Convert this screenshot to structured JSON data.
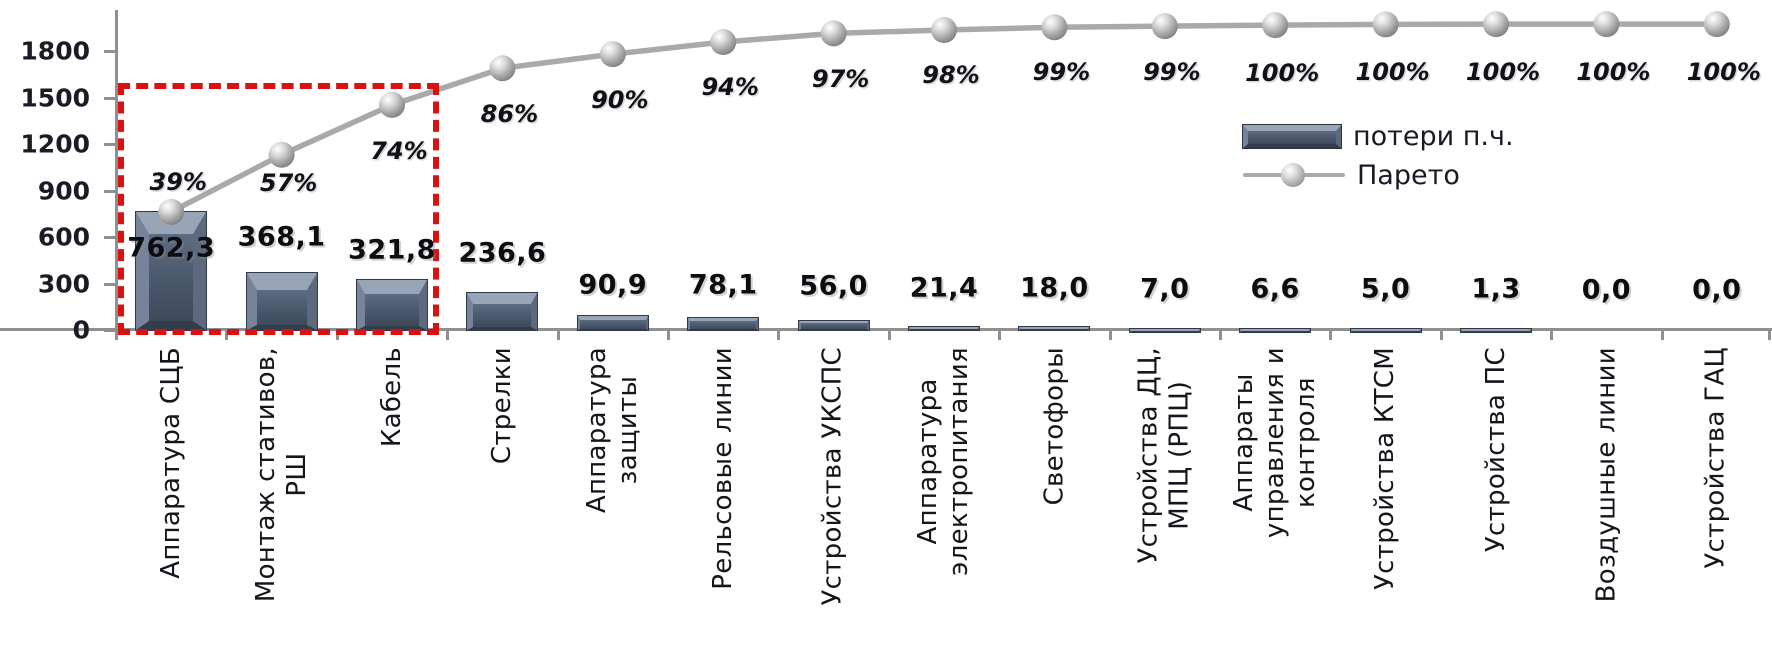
{
  "chart_data": {
    "type": "bar",
    "subtype": "pareto",
    "title": "",
    "xlabel": "",
    "ylabel": "",
    "ylim": [
      0,
      1800
    ],
    "yticks": [
      "0",
      "300",
      "600",
      "900",
      "1200",
      "1500",
      "1800"
    ],
    "grid": false,
    "legend_position": "right-inside",
    "categories": [
      "Аппаратура СЦБ",
      "Монтаж стативов,\nРШ",
      "Кабель",
      "Стрелки",
      "Аппаратура\nзащиты",
      "Рельсовые линии",
      "Устройства УКСПС",
      "Аппаратура\nэлектропитания",
      "Светофоры",
      "Устройства ДЦ,\nМПЦ (РПЦ)",
      "Аппараты\nуправления и\nконтроля",
      "Устройства КТСМ",
      "Устройства ПС",
      "Воздушные линии",
      "Устройства ГАЦ"
    ],
    "series": [
      {
        "name": "потери п.ч.",
        "type": "bar",
        "values": [
          762.3,
          368.1,
          321.8,
          236.6,
          90.9,
          78.1,
          56.0,
          21.4,
          18.0,
          7.0,
          6.6,
          5.0,
          1.3,
          0.0,
          0.0
        ],
        "value_labels": [
          "762,3",
          "368,1",
          "321,8",
          "236,6",
          "90,9",
          "78,1",
          "56,0",
          "21,4",
          "18,0",
          "7,0",
          "6,6",
          "5,0",
          "1,3",
          "0,0",
          "0,0"
        ]
      },
      {
        "name": "Парето",
        "type": "line-cumulative",
        "percent_labels": [
          "39%",
          "57%",
          "74%",
          "86%",
          "90%",
          "94%",
          "97%",
          "98%",
          "99%",
          "99%",
          "100%",
          "100%",
          "100%",
          "100%",
          "100%"
        ]
      }
    ],
    "legend": [
      {
        "label": "потери п.ч.",
        "swatch": "bar"
      },
      {
        "label": "Парето",
        "swatch": "line-marker"
      }
    ],
    "annotation": {
      "type": "red-dashed-box",
      "covers_categories": [
        "Аппаратура СЦБ",
        "Монтаж стативов,\nРШ",
        "Кабель"
      ]
    },
    "colors": {
      "bar_fill": "#4a586c",
      "bar_bevel_light": "#98a5b6",
      "pareto_line": "#a9a9a9",
      "marker": "#b5b5b5",
      "highlight_box": "#d91111",
      "axis": "#8f8f8f",
      "text": "#15151c"
    }
  }
}
